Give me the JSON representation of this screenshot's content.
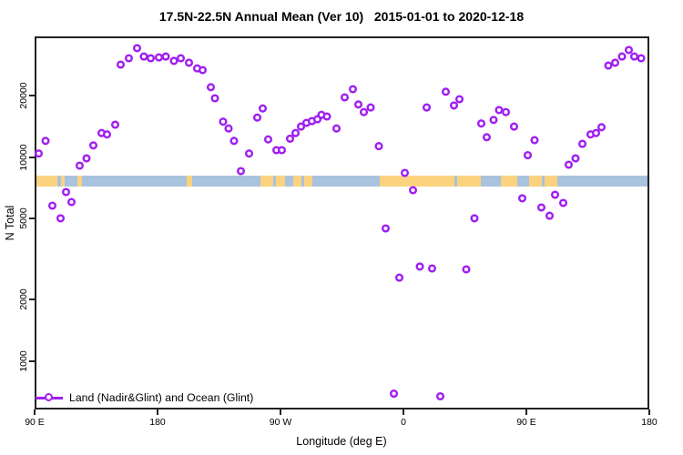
{
  "chart_data": {
    "type": "scatter",
    "title": "17.5N-22.5N Annual Mean (Ver 10)   2015-01-01 to 2020-12-18",
    "xlabel": "Longitude (deg E)",
    "ylabel": "N Total",
    "x_axis": {
      "note": "longitude unwrapped eastward from 90E across the dateline and Greenwich back to 180",
      "range_unwrapped_deg": [
        90,
        540
      ],
      "tick_positions_unwrapped": [
        90,
        180,
        270,
        360,
        450,
        540
      ],
      "tick_labels": [
        "90 E",
        "180",
        "90 W",
        "0",
        "90 E",
        "180"
      ]
    },
    "y_axis": {
      "scale": "log10",
      "range": [
        575,
        39000
      ],
      "tick_values": [
        1000,
        2000,
        5000,
        10000,
        20000
      ],
      "tick_labels": [
        "1000",
        "2000",
        "5000",
        "10000",
        "20000"
      ]
    },
    "legend": {
      "position": "bottom-left",
      "entries": [
        {
          "label": "Land (Nadir&Glint) and Ocean (Glint)",
          "marker": "open-circle-on-line",
          "color": "#A020F0"
        }
      ]
    },
    "map_band": {
      "description": "land(orange)/ocean(blue) strip along longitude",
      "y_range_values": [
        7130,
        8140
      ],
      "ocean_color": "#A9C2DE",
      "land_color": "#FBD37F",
      "land_segments_unwrapped_deg": [
        [
          91.5,
          106.5
        ],
        [
          109.5,
          112
        ],
        [
          121,
          124.5
        ],
        [
          201.5,
          205
        ],
        [
          255,
          264.5
        ],
        [
          266.5,
          273
        ],
        [
          279.5,
          285.5
        ],
        [
          287,
          293
        ],
        [
          342.5,
          397.5
        ],
        [
          399.5,
          416.5
        ],
        [
          431,
          443.5
        ],
        [
          452,
          461.5
        ],
        [
          463.5,
          472.5
        ]
      ]
    },
    "series": [
      {
        "name": "Land (Nadir&Glint) and Ocean (Glint)",
        "marker": "open-circle",
        "color": "#A020F0",
        "points": [
          [
            93,
            10400
          ],
          [
            98,
            12000
          ],
          [
            103,
            5770
          ],
          [
            109,
            5000
          ],
          [
            113,
            6730
          ],
          [
            117,
            6010
          ],
          [
            123,
            9070
          ],
          [
            128,
            9850
          ],
          [
            133,
            11400
          ],
          [
            139,
            13100
          ],
          [
            143,
            12900
          ],
          [
            149,
            14400
          ],
          [
            153,
            28400
          ],
          [
            159,
            30500
          ],
          [
            165,
            34200
          ],
          [
            170,
            31100
          ],
          [
            175,
            30500
          ],
          [
            181,
            30800
          ],
          [
            186,
            31100
          ],
          [
            192,
            29600
          ],
          [
            197,
            30500
          ],
          [
            203,
            29000
          ],
          [
            209,
            27200
          ],
          [
            213,
            26700
          ],
          [
            219,
            22000
          ],
          [
            222,
            19400
          ],
          [
            228,
            14900
          ],
          [
            232,
            13800
          ],
          [
            236,
            12000
          ],
          [
            241,
            8530
          ],
          [
            247,
            10400
          ],
          [
            253,
            15600
          ],
          [
            257,
            17300
          ],
          [
            261,
            12200
          ],
          [
            267,
            10800
          ],
          [
            271,
            10800
          ],
          [
            277,
            12300
          ],
          [
            281,
            13100
          ],
          [
            285,
            14100
          ],
          [
            289,
            14700
          ],
          [
            293,
            15000
          ],
          [
            297,
            15300
          ],
          [
            300,
            16100
          ],
          [
            304,
            15800
          ],
          [
            311,
            13800
          ],
          [
            317,
            19600
          ],
          [
            323,
            21500
          ],
          [
            327,
            18100
          ],
          [
            331,
            16600
          ],
          [
            336,
            17500
          ],
          [
            342,
            11300
          ],
          [
            347,
            4460
          ],
          [
            353,
            690
          ],
          [
            357,
            2560
          ],
          [
            361,
            8350
          ],
          [
            367,
            6870
          ],
          [
            372,
            2900
          ],
          [
            377,
            17500
          ],
          [
            381,
            2840
          ],
          [
            387,
            670
          ],
          [
            391,
            20900
          ],
          [
            397,
            17900
          ],
          [
            401,
            19200
          ],
          [
            406,
            2810
          ],
          [
            412,
            5000
          ],
          [
            417,
            14600
          ],
          [
            421,
            12500
          ],
          [
            426,
            15200
          ],
          [
            430,
            17000
          ],
          [
            435,
            16600
          ],
          [
            441,
            14100
          ],
          [
            447,
            6270
          ],
          [
            451,
            10200
          ],
          [
            456,
            12100
          ],
          [
            461,
            5650
          ],
          [
            467,
            5150
          ],
          [
            471,
            6530
          ],
          [
            477,
            5950
          ],
          [
            481,
            9160
          ],
          [
            486,
            9850
          ],
          [
            491,
            11600
          ],
          [
            497,
            12900
          ],
          [
            501,
            13100
          ],
          [
            505,
            14000
          ],
          [
            510,
            28100
          ],
          [
            515,
            29000
          ],
          [
            520,
            31100
          ],
          [
            525,
            33500
          ],
          [
            529,
            31100
          ],
          [
            534,
            30500
          ]
        ]
      }
    ]
  }
}
